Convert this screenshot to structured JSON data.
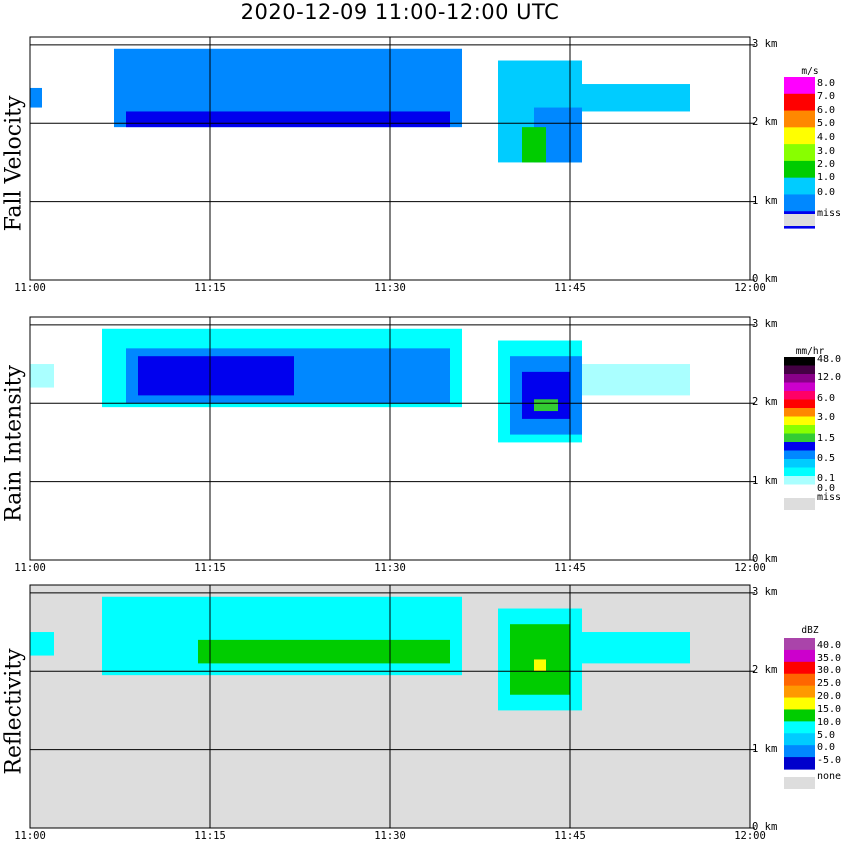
{
  "title": "2020-12-09   11:00-12:00 UTC",
  "chart_data": [
    {
      "type": "heatmap",
      "ylabel": "Fall Velocity",
      "x_ticks": [
        "11:00",
        "11:15",
        "11:30",
        "11:45",
        "12:00"
      ],
      "xlim": [
        "11:00",
        "12:00"
      ],
      "y_ticks": [
        "0 km",
        "1 km",
        "2 km",
        "3 km"
      ],
      "ylim_km": [
        0,
        3.1
      ],
      "grid": true,
      "legend": {
        "unit": "m/s",
        "labels": [
          "8.0",
          "7.0",
          "6.0",
          "5.0",
          "4.0",
          "3.0",
          "2.0",
          "1.0",
          "0.0"
        ],
        "colors": [
          "#ff00ff",
          "#ff0000",
          "#ff8800",
          "#ffff00",
          "#88ff00",
          "#00cc00",
          "#00ccff",
          "#0088ff",
          "#0000ee"
        ],
        "missing_label": "miss",
        "missing_color": "#dddddd"
      },
      "background": "#ffffff",
      "echo_regions": [
        {
          "t_start": "11:00",
          "t_end": "11:01",
          "z_low_km": 2.2,
          "z_high_km": 2.45,
          "color": "#0088ff"
        },
        {
          "t_start": "11:07",
          "t_end": "11:36",
          "z_low_km": 1.95,
          "z_high_km": 2.95,
          "color": "#0088ff"
        },
        {
          "t_start": "11:08",
          "t_end": "11:35",
          "z_low_km": 1.95,
          "z_high_km": 2.15,
          "color": "#0000ee"
        },
        {
          "t_start": "11:39",
          "t_end": "11:46",
          "z_low_km": 1.5,
          "z_high_km": 2.8,
          "color": "#00ccff"
        },
        {
          "t_start": "11:42",
          "t_end": "11:46",
          "z_low_km": 1.5,
          "z_high_km": 2.2,
          "color": "#0088ff"
        },
        {
          "t_start": "11:46",
          "t_end": "11:55",
          "z_low_km": 2.15,
          "z_high_km": 2.5,
          "color": "#00ccff"
        },
        {
          "t_start": "11:41",
          "t_end": "11:43",
          "z_low_km": 1.5,
          "z_high_km": 1.95,
          "color": "#00cc00"
        }
      ]
    },
    {
      "type": "heatmap",
      "ylabel": "Rain Intensity",
      "x_ticks": [
        "11:00",
        "11:15",
        "11:30",
        "11:45",
        "12:00"
      ],
      "xlim": [
        "11:00",
        "12:00"
      ],
      "y_ticks": [
        "0 km",
        "1 km",
        "2 km",
        "3 km"
      ],
      "ylim_km": [
        0,
        3.1
      ],
      "grid": true,
      "legend": {
        "unit": "mm/hr",
        "labels": [
          "48.0",
          "12.0",
          "6.0",
          "3.0",
          "1.5",
          "0.5",
          "0.1",
          "0.0"
        ],
        "colors": [
          "#000000",
          "#440044",
          "#880088",
          "#cc00cc",
          "#ff0066",
          "#ff0000",
          "#ff8800",
          "#ffff00",
          "#88ff00",
          "#33cc33",
          "#0000ee",
          "#0088ff",
          "#00ccff",
          "#00ffff",
          "#aaffff",
          "#ffffff"
        ],
        "missing_label": "miss",
        "missing_color": "#dddddd"
      },
      "background": "#ffffff",
      "echo_regions": [
        {
          "t_start": "11:00",
          "t_end": "11:02",
          "z_low_km": 2.2,
          "z_high_km": 2.5,
          "color": "#aaffff"
        },
        {
          "t_start": "11:06",
          "t_end": "11:36",
          "z_low_km": 1.95,
          "z_high_km": 2.95,
          "color": "#00ffff"
        },
        {
          "t_start": "11:08",
          "t_end": "11:35",
          "z_low_km": 2.0,
          "z_high_km": 2.7,
          "color": "#0088ff"
        },
        {
          "t_start": "11:09",
          "t_end": "11:22",
          "z_low_km": 2.1,
          "z_high_km": 2.6,
          "color": "#0000ee"
        },
        {
          "t_start": "11:39",
          "t_end": "11:46",
          "z_low_km": 1.5,
          "z_high_km": 2.8,
          "color": "#00ffff"
        },
        {
          "t_start": "11:40",
          "t_end": "11:46",
          "z_low_km": 1.6,
          "z_high_km": 2.6,
          "color": "#0088ff"
        },
        {
          "t_start": "11:41",
          "t_end": "11:45",
          "z_low_km": 1.8,
          "z_high_km": 2.4,
          "color": "#0000ee"
        },
        {
          "t_start": "11:42",
          "t_end": "11:44",
          "z_low_km": 1.9,
          "z_high_km": 2.05,
          "color": "#33cc33"
        },
        {
          "t_start": "11:46",
          "t_end": "11:55",
          "z_low_km": 2.1,
          "z_high_km": 2.5,
          "color": "#aaffff"
        }
      ]
    },
    {
      "type": "heatmap",
      "ylabel": "Reflectivity",
      "x_ticks": [
        "11:00",
        "11:15",
        "11:30",
        "11:45",
        "12:00"
      ],
      "xlim": [
        "11:00",
        "12:00"
      ],
      "y_ticks": [
        "0 km",
        "1 km",
        "2 km",
        "3 km"
      ],
      "ylim_km": [
        0,
        3.1
      ],
      "grid": true,
      "legend": {
        "unit": "dBZ",
        "labels": [
          "40.0",
          "35.0",
          "30.0",
          "25.0",
          "20.0",
          "15.0",
          "10.0",
          "5.0",
          "0.0",
          "-5.0"
        ],
        "colors": [
          "#aa44aa",
          "#cc00cc",
          "#ff0000",
          "#ff6600",
          "#ff9900",
          "#ffff00",
          "#00cc00",
          "#00ffff",
          "#00ccff",
          "#0088ff",
          "#0000cc"
        ],
        "missing_label": "none",
        "missing_color": "#dddddd"
      },
      "background": "#dddddd",
      "echo_regions": [
        {
          "t_start": "11:00",
          "t_end": "11:02",
          "z_low_km": 2.2,
          "z_high_km": 2.5,
          "color": "#00ffff"
        },
        {
          "t_start": "11:06",
          "t_end": "11:36",
          "z_low_km": 1.95,
          "z_high_km": 2.95,
          "color": "#00ffff"
        },
        {
          "t_start": "11:14",
          "t_end": "11:35",
          "z_low_km": 2.1,
          "z_high_km": 2.4,
          "color": "#00cc00"
        },
        {
          "t_start": "11:39",
          "t_end": "11:46",
          "z_low_km": 1.5,
          "z_high_km": 2.8,
          "color": "#00ffff"
        },
        {
          "t_start": "11:40",
          "t_end": "11:45",
          "z_low_km": 1.7,
          "z_high_km": 2.6,
          "color": "#00cc00"
        },
        {
          "t_start": "11:42",
          "t_end": "11:43",
          "z_low_km": 2.0,
          "z_high_km": 2.15,
          "color": "#ffff00"
        },
        {
          "t_start": "11:46",
          "t_end": "11:55",
          "z_low_km": 2.1,
          "z_high_km": 2.5,
          "color": "#00ffff"
        }
      ]
    }
  ]
}
